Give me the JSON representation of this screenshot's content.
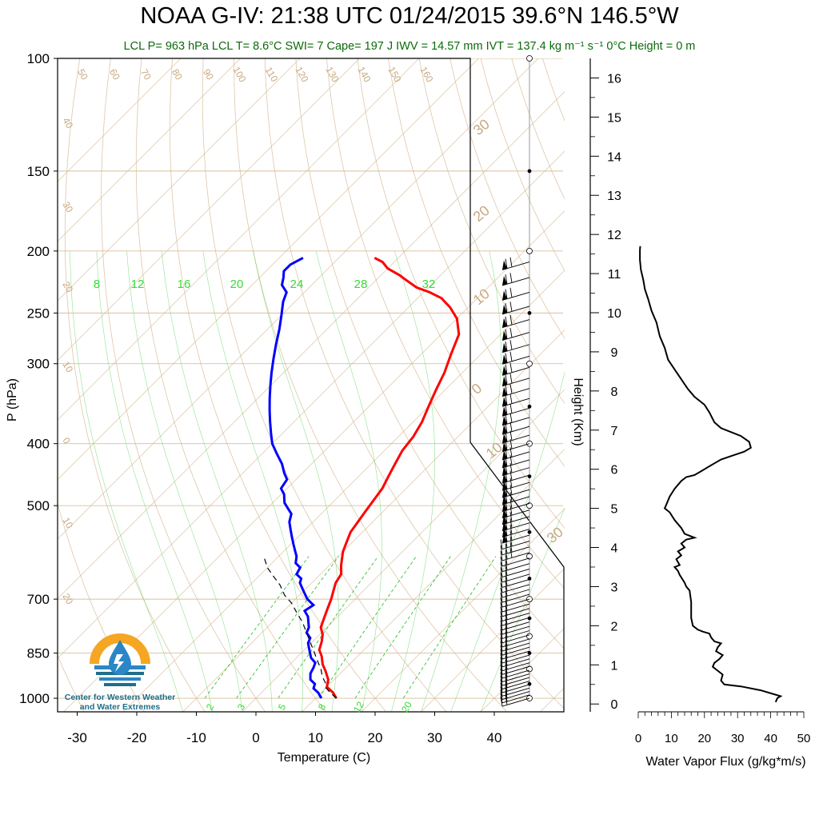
{
  "title": {
    "text": "NOAA G-IV: 21:38 UTC 01/24/2015  39.6°N 146.5°W"
  },
  "subtitle": {
    "text": "LCL P= 963 hPa  LCL T= 8.6°C  SWI= 7  Cape= 197 J  IWV = 14.57 mm  IVT = 137.4 kg m⁻¹ s⁻¹  0°C Height = 0 m"
  },
  "logo": {
    "line1": "Center for Western Weather",
    "line2": "and Water Extremes",
    "colors": {
      "orange": "#f5a623",
      "teal": "#1f6f8b",
      "blue": "#2b86c5"
    }
  },
  "chart_data": [
    {
      "type": "line",
      "name": "skew-t",
      "xlabel": "Temperature (C)",
      "ylabel": "P (hPa)",
      "xlim": [
        -34,
        52
      ],
      "ylim": [
        1050,
        100
      ],
      "y_scale": "log",
      "skew": "temperature isotherms skewed 45°",
      "x_ticks": [
        -30,
        -20,
        -10,
        0,
        10,
        20,
        30,
        40
      ],
      "y_ticks": [
        100,
        150,
        200,
        250,
        300,
        400,
        500,
        700,
        850,
        1000
      ],
      "mixing_ratio_labels": [
        "2",
        "3",
        "5",
        "8",
        "12",
        "20"
      ],
      "theta_e_labels": [
        "8",
        "12",
        "16",
        "20",
        "24",
        "28",
        "32"
      ],
      "dry_adiabat_labels": [
        "50",
        "60",
        "70",
        "80",
        "90",
        "100",
        "110",
        "120",
        "130",
        "140",
        "150",
        "160",
        "40",
        "30",
        "20",
        "10",
        "0",
        "10",
        "20"
      ],
      "moist_adiabat_labels": [
        "30",
        "20",
        "10",
        "0",
        "10",
        "30"
      ],
      "colors": {
        "temperature": "#ff0000",
        "dewpoint": "#0000ff",
        "parcel": "#000000",
        "background": "#d2b48c",
        "moist": "#00cc00"
      },
      "series": [
        {
          "key": "temperature",
          "points": [
            [
              13.5,
              1000
            ],
            [
              12,
              980
            ],
            [
              10,
              960
            ],
            [
              9,
              935
            ],
            [
              7,
              905
            ],
            [
              5.5,
              885
            ],
            [
              4,
              860
            ],
            [
              2.5,
              840
            ],
            [
              1.5,
              815
            ],
            [
              0.5,
              795
            ],
            [
              -1,
              775
            ],
            [
              -2,
              750
            ],
            [
              -3,
              725
            ],
            [
              -4,
              700
            ],
            [
              -5,
              680
            ],
            [
              -6,
              660
            ],
            [
              -6.5,
              640
            ],
            [
              -8,
              620
            ],
            [
              -9,
              605
            ],
            [
              -10,
              590
            ],
            [
              -11,
              570
            ],
            [
              -12,
              550
            ],
            [
              -12.5,
              530
            ],
            [
              -13,
              510
            ],
            [
              -13.5,
              490
            ],
            [
              -14,
              470
            ],
            [
              -15,
              450
            ],
            [
              -16,
              430
            ],
            [
              -17,
              410
            ],
            [
              -17.5,
              390
            ],
            [
              -18.5,
              370
            ],
            [
              -20,
              350
            ],
            [
              -21.5,
              330
            ],
            [
              -23,
              310
            ],
            [
              -25,
              290
            ],
            [
              -27,
              270
            ],
            [
              -30,
              255
            ],
            [
              -33,
              245
            ],
            [
              -36,
              237
            ],
            [
              -39,
              232
            ],
            [
              -42,
              228
            ],
            [
              -45,
              222
            ],
            [
              -47,
              218
            ],
            [
              -50,
              213
            ],
            [
              -52,
              208
            ],
            [
              -54,
              205
            ]
          ]
        },
        {
          "key": "dewpoint",
          "points": [
            [
              11,
              1000
            ],
            [
              9.5,
              980
            ],
            [
              8,
              965
            ],
            [
              7.5,
              950
            ],
            [
              6,
              935
            ],
            [
              5,
              915
            ],
            [
              4.5,
              895
            ],
            [
              4,
              880
            ],
            [
              2.5,
              865
            ],
            [
              1.5,
              850
            ],
            [
              0.5,
              835
            ],
            [
              -0.5,
              820
            ],
            [
              -1,
              805
            ],
            [
              -2.5,
              790
            ],
            [
              -3,
              775
            ],
            [
              -4,
              760
            ],
            [
              -5,
              745
            ],
            [
              -6.5,
              730
            ],
            [
              -6,
              715
            ],
            [
              -8,
              700
            ],
            [
              -9,
              690
            ],
            [
              -10,
              680
            ],
            [
              -11,
              670
            ],
            [
              -12,
              660
            ],
            [
              -12.5,
              650
            ],
            [
              -14,
              640
            ],
            [
              -14.5,
              625
            ],
            [
              -16,
              615
            ],
            [
              -17,
              600
            ],
            [
              -18,
              590
            ],
            [
              -19.5,
              575
            ],
            [
              -21,
              560
            ],
            [
              -22.5,
              545
            ],
            [
              -24,
              530
            ],
            [
              -25,
              515
            ],
            [
              -26.5,
              505
            ],
            [
              -28,
              495
            ],
            [
              -29.5,
              480
            ],
            [
              -31,
              470
            ],
            [
              -31.5,
              455
            ],
            [
              -33,
              445
            ],
            [
              -35,
              430
            ],
            [
              -37.5,
              415
            ],
            [
              -40,
              400
            ],
            [
              -42,
              385
            ],
            [
              -44,
              370
            ],
            [
              -46,
              355
            ],
            [
              -48,
              340
            ],
            [
              -50,
              325
            ],
            [
              -52,
              310
            ],
            [
              -54,
              295
            ],
            [
              -56,
              280
            ],
            [
              -58,
              265
            ],
            [
              -60,
              252
            ],
            [
              -62,
              240
            ],
            [
              -63,
              232
            ],
            [
              -65,
              226
            ],
            [
              -66,
              220
            ],
            [
              -67,
              215
            ],
            [
              -67,
              210
            ],
            [
              -66,
              205
            ]
          ]
        },
        {
          "key": "parcel",
          "points": [
            [
              13.5,
              1000
            ],
            [
              11.5,
              980
            ],
            [
              10,
              963
            ],
            [
              9,
              945
            ],
            [
              7.5,
              925
            ],
            [
              6,
              900
            ],
            [
              4.5,
              880
            ],
            [
              3,
              860
            ],
            [
              1.5,
              840
            ],
            [
              -0.5,
              815
            ],
            [
              -2.5,
              790
            ],
            [
              -5,
              760
            ],
            [
              -7.5,
              735
            ],
            [
              -10,
              710
            ],
            [
              -12.5,
              690
            ],
            [
              -15,
              665
            ],
            [
              -17.5,
              645
            ],
            [
              -20,
              625
            ],
            [
              -22,
              605
            ]
          ]
        }
      ],
      "wind_barbs": "wind barbs plotted along right edge from 1000 to 205 hPa"
    },
    {
      "type": "line",
      "name": "water-vapor-flux",
      "xlabel": "Water Vapor Flux (g/kg*m/s)",
      "ylabel": "Height (Km)",
      "xlim": [
        0,
        50
      ],
      "ylim": [
        -0.2,
        16.5
      ],
      "x_ticks": [
        0,
        10,
        20,
        30,
        40,
        50
      ],
      "y_ticks": [
        0,
        1,
        2,
        3,
        4,
        5,
        6,
        7,
        8,
        9,
        10,
        11,
        12,
        13,
        14,
        15,
        16
      ],
      "points": [
        [
          41.5,
          0.05
        ],
        [
          42,
          0.15
        ],
        [
          43,
          0.2
        ],
        [
          41,
          0.25
        ],
        [
          37,
          0.35
        ],
        [
          31,
          0.45
        ],
        [
          26,
          0.5
        ],
        [
          25,
          0.6
        ],
        [
          25.5,
          0.75
        ],
        [
          24,
          0.85
        ],
        [
          22.5,
          0.95
        ],
        [
          23,
          1.05
        ],
        [
          24.5,
          1.15
        ],
        [
          25.5,
          1.25
        ],
        [
          23.5,
          1.35
        ],
        [
          24,
          1.45
        ],
        [
          25,
          1.55
        ],
        [
          23,
          1.6
        ],
        [
          22,
          1.7
        ],
        [
          21.5,
          1.8
        ],
        [
          19.5,
          1.85
        ],
        [
          18,
          1.9
        ],
        [
          16.5,
          2.0
        ],
        [
          16,
          2.2
        ],
        [
          16,
          2.6
        ],
        [
          15.5,
          2.9
        ],
        [
          14.5,
          3.0
        ],
        [
          14,
          3.1
        ],
        [
          12.5,
          3.3
        ],
        [
          12,
          3.4
        ],
        [
          11,
          3.5
        ],
        [
          12.5,
          3.55
        ],
        [
          11.5,
          3.7
        ],
        [
          13,
          3.8
        ],
        [
          12,
          3.9
        ],
        [
          14,
          4.0
        ],
        [
          13,
          4.1
        ],
        [
          14.5,
          4.2
        ],
        [
          17,
          4.25
        ],
        [
          14,
          4.35
        ],
        [
          13,
          4.5
        ],
        [
          11,
          4.7
        ],
        [
          9.5,
          4.9
        ],
        [
          8,
          5.0
        ],
        [
          8.5,
          5.1
        ],
        [
          9.5,
          5.3
        ],
        [
          11,
          5.5
        ],
        [
          13,
          5.7
        ],
        [
          14.5,
          5.8
        ],
        [
          17,
          5.85
        ],
        [
          19,
          5.95
        ],
        [
          21,
          6.05
        ],
        [
          23,
          6.15
        ],
        [
          25,
          6.25
        ],
        [
          28.5,
          6.35
        ],
        [
          32,
          6.45
        ],
        [
          34,
          6.55
        ],
        [
          33.5,
          6.7
        ],
        [
          31,
          6.85
        ],
        [
          28,
          6.95
        ],
        [
          25,
          7.05
        ],
        [
          23,
          7.2
        ],
        [
          21.5,
          7.45
        ],
        [
          20,
          7.65
        ],
        [
          17,
          7.85
        ],
        [
          15,
          8.05
        ],
        [
          13,
          8.3
        ],
        [
          11,
          8.55
        ],
        [
          9,
          8.8
        ],
        [
          8,
          9.1
        ],
        [
          6.5,
          9.4
        ],
        [
          5.5,
          9.75
        ],
        [
          4,
          10.05
        ],
        [
          3,
          10.35
        ],
        [
          2,
          10.6
        ],
        [
          1.5,
          10.85
        ],
        [
          0.8,
          11.1
        ],
        [
          0.5,
          11.35
        ],
        [
          0.5,
          11.6
        ],
        [
          0.6,
          11.7
        ]
      ]
    }
  ]
}
